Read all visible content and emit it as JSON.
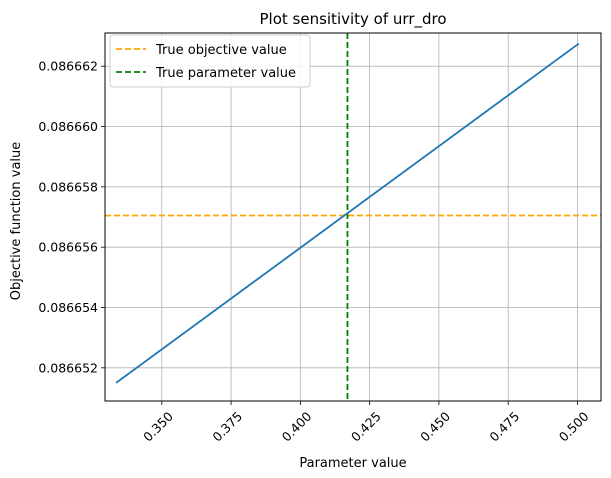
{
  "chart_data": {
    "type": "line",
    "title": "Plot sensitivity of urr_dro",
    "xlabel": "Parameter value",
    "ylabel": "Objective function value",
    "xlim": [
      0.3295,
      0.5085
    ],
    "ylim": [
      0.0866509,
      0.0866631
    ],
    "xticks": [
      0.35,
      0.375,
      0.4,
      0.425,
      0.45,
      0.475,
      0.5
    ],
    "xtick_labels": [
      "0.350",
      "0.375",
      "0.400",
      "0.425",
      "0.450",
      "0.475",
      "0.500"
    ],
    "yticks": [
      0.086652,
      0.086654,
      0.086656,
      0.086658,
      0.08666,
      0.086662
    ],
    "ytick_labels": [
      "0.086652",
      "0.086654",
      "0.086656",
      "0.086658",
      "0.086660",
      "0.086662"
    ],
    "grid": true,
    "legend_position": "top-left",
    "series": [
      {
        "kind": "line",
        "color": "#1f77b4",
        "x": [
          0.3335,
          0.5005
        ],
        "y": [
          0.0866515,
          0.08666275
        ]
      }
    ],
    "reference_lines": [
      {
        "name": "True objective value",
        "orientation": "horizontal",
        "value": 0.08665705,
        "color": "#ffa500",
        "style": "dashed"
      },
      {
        "name": "True parameter value",
        "orientation": "vertical",
        "value": 0.417,
        "color": "#008000",
        "style": "dashed"
      }
    ]
  }
}
